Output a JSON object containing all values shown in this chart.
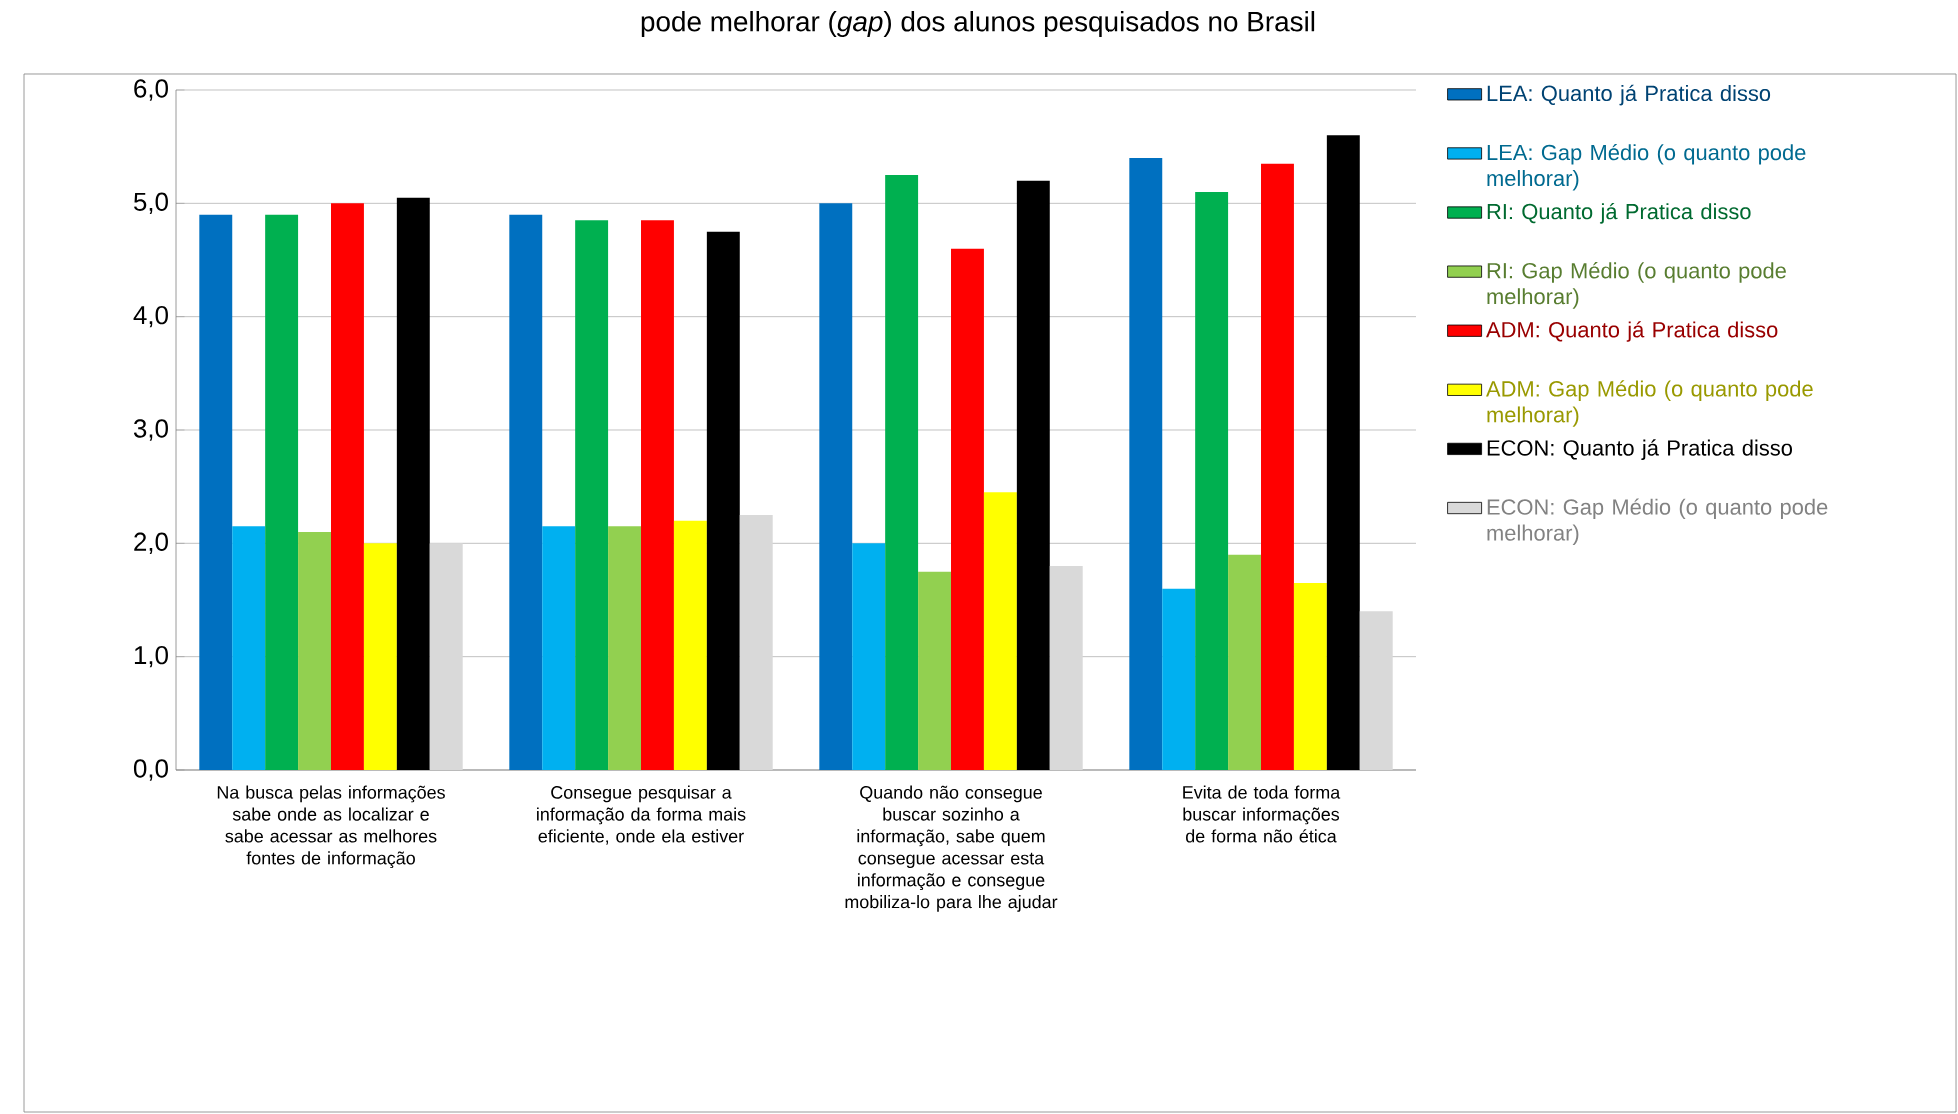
{
  "chart_data": {
    "type": "bar",
    "title": "pode melhorar (*gap*) dos alunos pesquisados no Brasil",
    "categories": [
      "Na busca pelas informações sabe onde as localizar e sabe acessar as melhores fontes de informação",
      "Consegue pesquisar a informação da forma mais eficiente, onde ela estiver",
      "Quando não consegue buscar sozinho a informação, sabe quem consegue acessar esta informação e consegue mobiliza-lo para lhe ajudar",
      "Evita de toda forma buscar informações de forma não ética"
    ],
    "series": [
      {
        "name": "LEA: Quanto já Pratica disso",
        "color": "#0070c0",
        "values": [
          4.9,
          4.9,
          5.0,
          5.4
        ]
      },
      {
        "name": "LEA: Gap Médio (o quanto pode melhorar)",
        "color": "#00b0f0",
        "values": [
          2.15,
          2.15,
          2.0,
          1.6
        ]
      },
      {
        "name": "RI: Quanto já Pratica disso",
        "color": "#00b050",
        "values": [
          4.9,
          4.85,
          5.25,
          5.1
        ]
      },
      {
        "name": "RI: Gap Médio (o quanto pode melhorar)",
        "color": "#92d050",
        "values": [
          2.1,
          2.15,
          1.75,
          1.9
        ]
      },
      {
        "name": "ADM: Quanto já Pratica disso",
        "color": "#ff0000",
        "values": [
          5.0,
          4.85,
          4.6,
          5.35
        ]
      },
      {
        "name": "ADM: Gap Médio (o quanto pode melhorar)",
        "color": "#ffff00",
        "values": [
          2.0,
          2.2,
          2.45,
          1.65
        ]
      },
      {
        "name": "ECON: Quanto já Pratica disso",
        "color": "#000000",
        "values": [
          5.05,
          4.75,
          5.2,
          5.6
        ]
      },
      {
        "name": "ECON: Gap Médio (o quanto pode melhorar)",
        "color": "#d9d9d9",
        "values": [
          2.0,
          2.25,
          1.8,
          1.4
        ]
      }
    ],
    "ylim": [
      0,
      6
    ],
    "yticks": [
      {
        "value": 0,
        "label": "0,0"
      },
      {
        "value": 1,
        "label": "1,0"
      },
      {
        "value": 2,
        "label": "2,0"
      },
      {
        "value": 3,
        "label": "3,0"
      },
      {
        "value": 4,
        "label": "4,0"
      },
      {
        "value": 5,
        "label": "5,0"
      },
      {
        "value": 6,
        "label": "6,0"
      }
    ],
    "grid": "y",
    "legend": "right"
  }
}
